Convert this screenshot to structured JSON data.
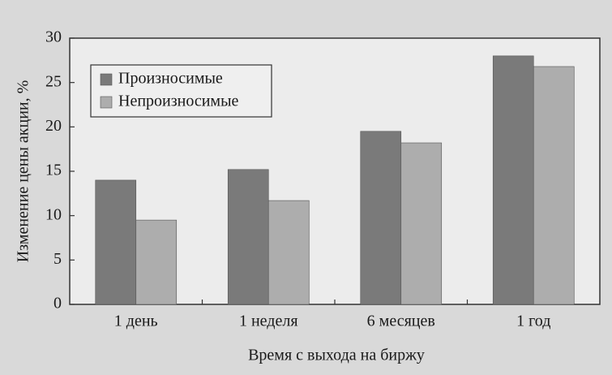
{
  "chart_data": {
    "type": "bar",
    "xlabel": "Время с выхода на биржу",
    "ylabel": "Изменение цены акции, %",
    "categories": [
      "1 день",
      "1 неделя",
      "6 месяцев",
      "1 год"
    ],
    "series": [
      {
        "name": "Произносимые",
        "color": "#7a7a7a",
        "values": [
          14.0,
          15.2,
          19.5,
          28.0
        ]
      },
      {
        "name": "Непроизносимые",
        "color": "#adadad",
        "values": [
          9.5,
          11.7,
          18.2,
          26.8
        ]
      }
    ],
    "ylim": [
      0,
      30
    ],
    "yticks": [
      0,
      5,
      10,
      15,
      20,
      25,
      30
    ],
    "grid": false,
    "legend": "upper left"
  }
}
